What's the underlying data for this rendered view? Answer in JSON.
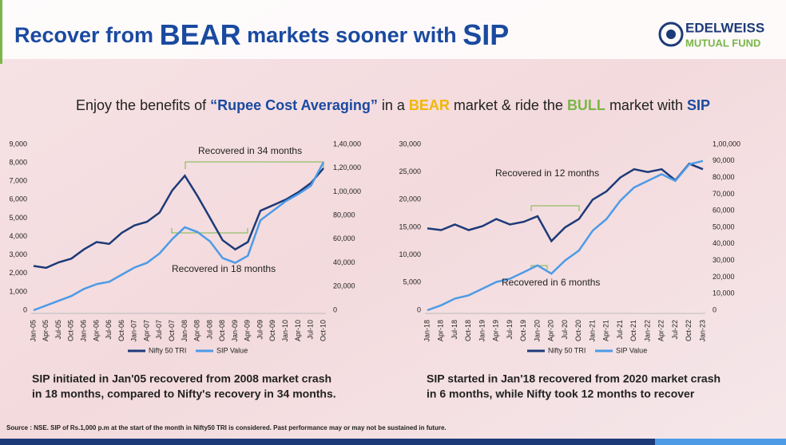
{
  "title": {
    "parts": [
      "Recover from ",
      "BEAR",
      " markets sooner with ",
      "SIP"
    ]
  },
  "logo": {
    "name": "EDELWEISS",
    "sub": "MUTUAL FUND"
  },
  "subtitle": {
    "parts": [
      "Enjoy the benefits of ",
      "“Rupee Cost Averaging”",
      " in a ",
      "BEAR",
      " market & ride the ",
      "BULL",
      " market with ",
      "SIP"
    ]
  },
  "chart_data": [
    {
      "type": "line",
      "categories": [
        "Jan-05",
        "Apr-05",
        "Jul-05",
        "Oct-05",
        "Jan-06",
        "Apr-06",
        "Jul-06",
        "Oct-06",
        "Jan-07",
        "Apr-07",
        "Jul-07",
        "Oct-07",
        "Jan-08",
        "Apr-08",
        "Jul-08",
        "Oct-08",
        "Jan-09",
        "Apr-09",
        "Jul-09",
        "Oct-09",
        "Jan-10",
        "Apr-10",
        "Jul-10",
        "Oct-10"
      ],
      "series": [
        {
          "name": "Nifty 50 TRI",
          "color": "#1d3a78",
          "values": [
            2400,
            2300,
            2600,
            2800,
            3300,
            3700,
            3600,
            4200,
            4600,
            4800,
            5300,
            6500,
            7300,
            6200,
            5000,
            3800,
            3300,
            3700,
            5400,
            5700,
            6000,
            6400,
            6900,
            7700
          ]
        },
        {
          "name": "SIP Value",
          "color": "#4d9be6",
          "axis": "y2",
          "values": [
            0,
            4000,
            8000,
            12000,
            18000,
            22000,
            24000,
            30000,
            36000,
            40000,
            48000,
            60000,
            70000,
            66000,
            58000,
            44000,
            40000,
            46000,
            76000,
            84000,
            92000,
            98000,
            105000,
            125000
          ]
        }
      ],
      "ylim": [
        0,
        9000
      ],
      "yticks": [
        0,
        {
          "value": 1000,
          "label": "1,000"
        },
        {
          "value": 2000,
          "label": "2,000"
        },
        {
          "value": 3000,
          "label": "3,000"
        },
        {
          "value": 4000,
          "label": "4,000"
        },
        {
          "value": 5000,
          "label": "5,000"
        },
        {
          "value": 6000,
          "label": "6,000"
        },
        {
          "value": 7000,
          "label": "7,000"
        },
        {
          "value": 8000,
          "label": "8,000"
        },
        {
          "value": 9000,
          "label": "9,000"
        }
      ],
      "y2lim": [
        0,
        140000
      ],
      "y2ticks": [
        0,
        {
          "value": 20000,
          "label": "20,000"
        },
        {
          "value": 40000,
          "label": "40,000"
        },
        {
          "value": 60000,
          "label": "60,000"
        },
        {
          "value": 80000,
          "label": "80,000"
        },
        {
          "value": 100000,
          "label": "1,00,000"
        },
        {
          "value": 120000,
          "label": "1,20,000"
        },
        {
          "value": 140000,
          "label": "1,40,000"
        }
      ],
      "annotations": [
        "Recovered in 34 months",
        "Recovered in 18 months"
      ]
    },
    {
      "type": "line",
      "categories": [
        "Jan-18",
        "Apr-18",
        "Jul-18",
        "Oct-18",
        "Jan-19",
        "Apr-19",
        "Jul-19",
        "Oct-19",
        "Jan-20",
        "Apr-20",
        "Jul-20",
        "Oct-20",
        "Jan-21",
        "Apr-21",
        "Jul-21",
        "Oct-21",
        "Jan-22",
        "Apr-22",
        "Jul-22",
        "Oct-22",
        "Jan-23"
      ],
      "series": [
        {
          "name": "Nifty 50 TRI",
          "color": "#1d3a78",
          "values": [
            14800,
            14500,
            15500,
            14500,
            15200,
            16500,
            15500,
            16000,
            17000,
            12500,
            15000,
            16500,
            20000,
            21500,
            24000,
            25500,
            25000,
            25500,
            23500,
            26500,
            25500
          ]
        },
        {
          "name": "SIP Value",
          "color": "#4d9be6",
          "axis": "y2",
          "values": [
            0,
            3000,
            7000,
            9000,
            13000,
            17000,
            19000,
            23000,
            27000,
            22000,
            30000,
            36000,
            48000,
            55000,
            66000,
            74000,
            78000,
            82000,
            78000,
            88000,
            90000
          ]
        }
      ],
      "ylim": [
        0,
        30000
      ],
      "yticks": [
        0,
        {
          "value": 5000,
          "label": "5,000"
        },
        {
          "value": 10000,
          "label": "10,000"
        },
        {
          "value": 15000,
          "label": "15,000"
        },
        {
          "value": 20000,
          "label": "20,000"
        },
        {
          "value": 25000,
          "label": "25,000"
        },
        {
          "value": 30000,
          "label": "30,000"
        }
      ],
      "y2lim": [
        0,
        100000
      ],
      "y2ticks": [
        0,
        {
          "value": 10000,
          "label": "10,000"
        },
        {
          "value": 20000,
          "label": "20,000"
        },
        {
          "value": 30000,
          "label": "30,000"
        },
        {
          "value": 40000,
          "label": "40,000"
        },
        {
          "value": 50000,
          "label": "50,000"
        },
        {
          "value": 60000,
          "label": "60,000"
        },
        {
          "value": 70000,
          "label": "70,000"
        },
        {
          "value": 80000,
          "label": "80,000"
        },
        {
          "value": 90000,
          "label": "90,000"
        },
        {
          "value": 100000,
          "label": "1,00,000"
        }
      ],
      "annotations": [
        "Recovered in 12 months",
        "Recovered in 6 months"
      ]
    }
  ],
  "captions": [
    [
      "SIP initiated in Jan'05 recovered from 2008 market crash",
      "in 18 months, compared to Nifty's recovery in 34 months."
    ],
    [
      "SIP started in Jan'18 recovered from 2020 market crash",
      "in 6 months, while Nifty took 12 months to recover"
    ]
  ],
  "source": "Source : NSE. SIP of Rs.1,000 p.m at the start of the month in Nifty50 TRI is considered. Past performance may or may not be sustained in future."
}
